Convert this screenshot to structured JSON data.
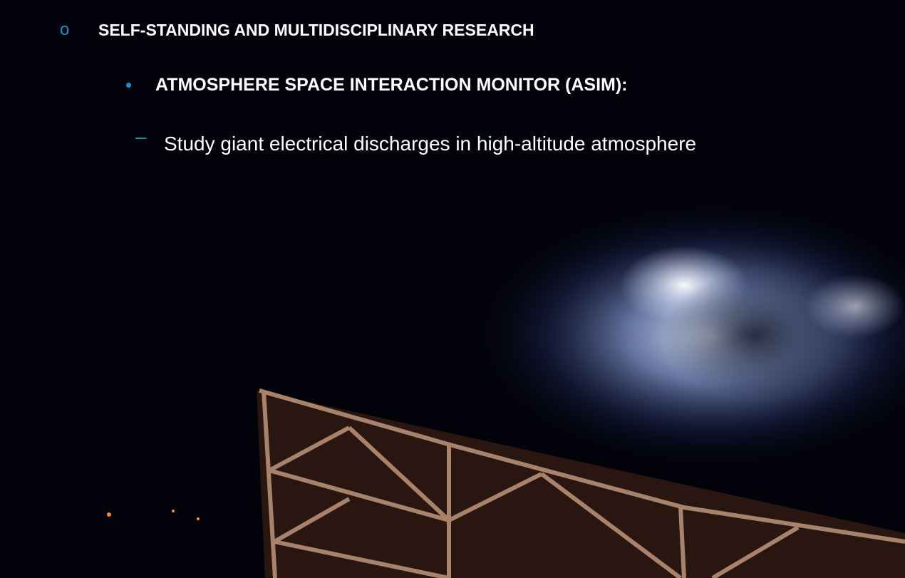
{
  "bullets": [
    {
      "marker": "o",
      "text": "SELF-STANDING AND MULTIDISCIPLINARY RESEARCH"
    },
    {
      "marker": "•",
      "text": "ATMOSPHERE SPACE INTERACTION MONITOR (ASIM):"
    },
    {
      "marker": "–",
      "text": "Study giant electrical discharges in high-altitude atmosphere"
    }
  ]
}
